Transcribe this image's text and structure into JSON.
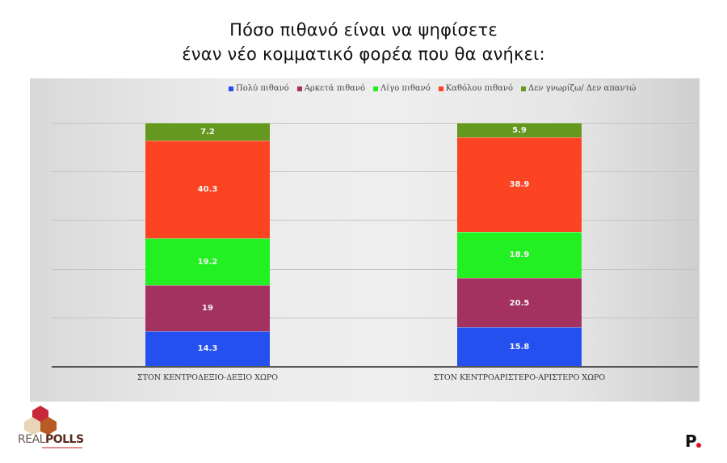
{
  "title": {
    "line1": "Πόσο πιθανό είναι να ψηφίσετε",
    "line2": "έναν νέο κομματικό φορέα που θα ανήκει:"
  },
  "legend": [
    {
      "label": "Πολύ πιθανό",
      "color": "#2450f0"
    },
    {
      "label": "Αρκετά πιθανό",
      "color": "#a3325f"
    },
    {
      "label": "Λίγο πιθανό",
      "color": "#22f022"
    },
    {
      "label": "Καθόλου πιθανό",
      "color": "#fc4422"
    },
    {
      "label": "Δεν γνωρίζω/ Δεν απαντώ",
      "color": "#64981e"
    }
  ],
  "chart_data": {
    "type": "bar",
    "stacked": true,
    "title": "Πόσο πιθανό είναι να ψηφίσετε έναν νέο κομματικό φορέα που θα ανήκει:",
    "categories": [
      "ΣΤΟΝ ΚΕΝΤΡΟΔΕΞΙΟ-ΔΕΞΙΟ ΧΩΡΟ",
      "ΣΤΟΝ ΚΕΝΤΡΟΑΡΙΣΤΕΡΟ-ΑΡΙΣΤΕΡΟ ΧΩΡΟ"
    ],
    "series": [
      {
        "name": "Πολύ πιθανό",
        "values": [
          14.3,
          15.8
        ],
        "color": "#2450f0"
      },
      {
        "name": "Αρκετά πιθανό",
        "values": [
          19,
          20.5
        ],
        "color": "#a3325f"
      },
      {
        "name": "Λίγο πιθανό",
        "values": [
          19.2,
          18.9
        ],
        "color": "#22f022"
      },
      {
        "name": "Καθόλου πιθανό",
        "values": [
          40.3,
          38.9
        ],
        "color": "#fc4422"
      },
      {
        "name": "Δεν γνωρίζω/ Δεν απαντώ",
        "values": [
          7.2,
          5.9
        ],
        "color": "#64981e"
      }
    ],
    "xlabel": "",
    "ylabel": "",
    "ylim": [
      0,
      100
    ],
    "grid": true,
    "legend_position": "top",
    "data_labels": true
  },
  "logos": {
    "left_brand_light": "REAL",
    "left_brand_bold": "POLLS",
    "right_brand": "P"
  }
}
